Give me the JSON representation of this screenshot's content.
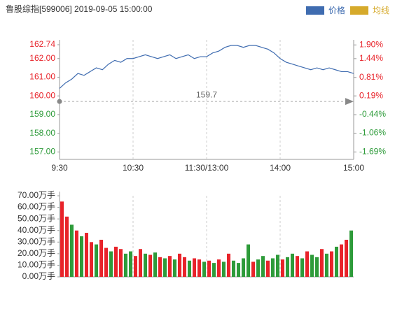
{
  "chart_data": [
    {
      "type": "line",
      "title": "鲁股综指[599006] 2019-09-05 15:00:00",
      "legend": [
        {
          "name": "价格",
          "color": "#3f6cb0"
        },
        {
          "name": "均线",
          "color": "#d6aa2b"
        }
      ],
      "categories": [
        "9:30",
        null,
        null,
        null,
        null,
        null,
        null,
        null,
        null,
        null,
        null,
        null,
        "10:30",
        null,
        null,
        null,
        null,
        null,
        null,
        null,
        null,
        null,
        null,
        null,
        "11:30/13:00",
        null,
        null,
        null,
        null,
        null,
        null,
        null,
        null,
        null,
        null,
        null,
        "14:00",
        null,
        null,
        null,
        null,
        null,
        null,
        null,
        null,
        null,
        null,
        null,
        "15:00"
      ],
      "series": [
        {
          "name": "价格",
          "color": "#3f6cb0",
          "values": [
            160.4,
            160.7,
            160.9,
            161.2,
            161.1,
            161.3,
            161.5,
            161.4,
            161.7,
            161.9,
            161.8,
            162.0,
            162.0,
            162.1,
            162.2,
            162.1,
            162.0,
            162.1,
            162.2,
            162.0,
            162.1,
            162.2,
            162.0,
            162.1,
            162.1,
            162.3,
            162.4,
            162.6,
            162.7,
            162.7,
            162.6,
            162.7,
            162.7,
            162.6,
            162.5,
            162.3,
            162.0,
            161.8,
            161.7,
            161.6,
            161.5,
            161.4,
            161.5,
            161.4,
            161.5,
            161.4,
            161.3,
            161.3,
            161.2
          ]
        }
      ],
      "reference": 159.7,
      "ylim": [
        156.6,
        163.0
      ],
      "yticks": [
        162.74,
        {
          "value": 162,
          "label": "162.00"
        },
        {
          "value": 161,
          "label": "161.00"
        },
        {
          "value": 160,
          "label": "160.00"
        },
        {
          "value": 159,
          "label": "159.00"
        },
        {
          "value": 158,
          "label": "158.00"
        },
        {
          "value": 157,
          "label": "157.00"
        }
      ],
      "y2lim": [
        -1.94,
        2.07
      ],
      "y2ticks": [
        {
          "value": 1.9,
          "label": "1.90%"
        },
        {
          "value": 1.44,
          "label": "1.44%"
        },
        {
          "value": 0.81,
          "label": "0.81%"
        },
        {
          "value": 0.19,
          "label": "0.19%"
        },
        {
          "value": -0.44,
          "label": "-0.44%"
        },
        {
          "value": -1.06,
          "label": "-1.06%"
        },
        {
          "value": -1.69,
          "label": "-1.69%"
        }
      ],
      "up_color": "#e8232a",
      "down_color": "#2e9b3a",
      "grid": true
    },
    {
      "type": "bar",
      "values": [
        65,
        52,
        45,
        40,
        35,
        38,
        30,
        28,
        32,
        25,
        22,
        26,
        24,
        20,
        22,
        18,
        24,
        20,
        19,
        21,
        17,
        16,
        18,
        15,
        20,
        17,
        14,
        16,
        15,
        13,
        14,
        12,
        15,
        13,
        20,
        14,
        12,
        16,
        28,
        13,
        15,
        18,
        14,
        16,
        19,
        15,
        17,
        20,
        18,
        16,
        22,
        19,
        17,
        24,
        20,
        22,
        26,
        28,
        32,
        40
      ],
      "colors": [
        "#e8232a",
        "#e8232a",
        "#2e9b3a",
        "#e8232a",
        "#2e9b3a",
        "#e8232a",
        "#e8232a",
        "#2e9b3a",
        "#e8232a",
        "#e8232a",
        "#2e9b3a",
        "#e8232a",
        "#e8232a",
        "#2e9b3a",
        "#2e9b3a",
        "#e8232a",
        "#e8232a",
        "#2e9b3a",
        "#e8232a",
        "#2e9b3a",
        "#e8232a",
        "#2e9b3a",
        "#e8232a",
        "#2e9b3a",
        "#e8232a",
        "#e8232a",
        "#2e9b3a",
        "#e8232a",
        "#e8232a",
        "#2e9b3a",
        "#e8232a",
        "#2e9b3a",
        "#e8232a",
        "#2e9b3a",
        "#e8232a",
        "#2e9b3a",
        "#2e9b3a",
        "#2e9b3a",
        "#2e9b3a",
        "#e8232a",
        "#2e9b3a",
        "#2e9b3a",
        "#e8232a",
        "#2e9b3a",
        "#2e9b3a",
        "#e8232a",
        "#2e9b3a",
        "#2e9b3a",
        "#e8232a",
        "#2e9b3a",
        "#e8232a",
        "#2e9b3a",
        "#2e9b3a",
        "#e8232a",
        "#2e9b3a",
        "#e8232a",
        "#2e9b3a",
        "#e8232a",
        "#e8232a",
        "#2e9b3a"
      ],
      "ylim": [
        0,
        70
      ],
      "yticks": [
        {
          "value": 70,
          "label": "70.00万手"
        },
        {
          "value": 60,
          "label": "60.00万手"
        },
        {
          "value": 50,
          "label": "50.00万手"
        },
        {
          "value": 40,
          "label": "40.00万手"
        },
        {
          "value": 30,
          "label": "30.00万手"
        },
        {
          "value": 20,
          "label": "20.00万手"
        },
        {
          "value": 10,
          "label": "10.00万手"
        },
        {
          "value": 0,
          "label": "0.00万手"
        }
      ]
    }
  ]
}
